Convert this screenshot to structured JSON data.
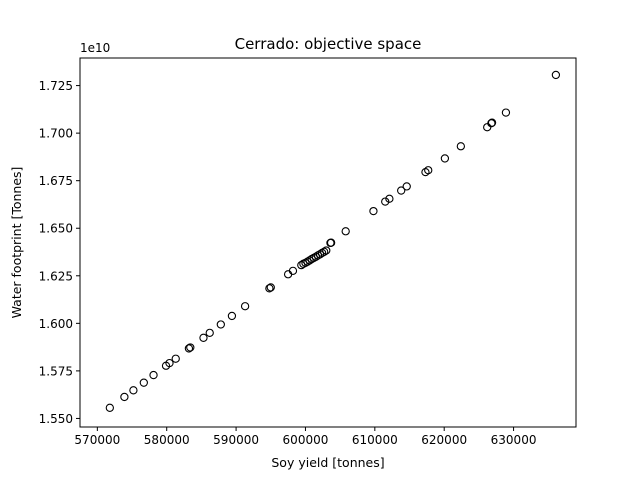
{
  "chart_data": {
    "type": "scatter",
    "title": "Cerrado: objective space",
    "xlabel": "Soy yield [tonnes]",
    "ylabel": "Water footprint [Tonnes]",
    "y_offset_label": "1e10",
    "xlim": [
      567500,
      639000
    ],
    "ylim": [
      1.5455,
      1.7395
    ],
    "xticks": [
      570000,
      580000,
      590000,
      600000,
      610000,
      620000,
      630000
    ],
    "xtick_labels": [
      "570000",
      "580000",
      "590000",
      "600000",
      "610000",
      "620000",
      "630000"
    ],
    "yticks": [
      1.55,
      1.575,
      1.6,
      1.625,
      1.65,
      1.675,
      1.7,
      1.725
    ],
    "ytick_labels": [
      "1.550",
      "1.575",
      "1.600",
      "1.625",
      "1.650",
      "1.675",
      "1.700",
      "1.725"
    ],
    "grid": false,
    "marker": "open-circle",
    "marker_edge_color": "#000000",
    "marker_face_color": "none",
    "points": [
      [
        571800,
        1.5556
      ],
      [
        573900,
        1.5613
      ],
      [
        575200,
        1.5648
      ],
      [
        576700,
        1.5688
      ],
      [
        578100,
        1.5728
      ],
      [
        579900,
        1.5777
      ],
      [
        580400,
        1.5791
      ],
      [
        581300,
        1.5814
      ],
      [
        583200,
        1.5868
      ],
      [
        583400,
        1.5873
      ],
      [
        585300,
        1.5924
      ],
      [
        586200,
        1.595
      ],
      [
        587800,
        1.5994
      ],
      [
        589400,
        1.6039
      ],
      [
        591300,
        1.609
      ],
      [
        594800,
        1.6184
      ],
      [
        595000,
        1.6189
      ],
      [
        597500,
        1.6258
      ],
      [
        598200,
        1.6276
      ],
      [
        599400,
        1.6306
      ],
      [
        599700,
        1.6313
      ],
      [
        600000,
        1.6318
      ],
      [
        600300,
        1.6324
      ],
      [
        600600,
        1.6331
      ],
      [
        600900,
        1.6338
      ],
      [
        601200,
        1.6344
      ],
      [
        601500,
        1.635
      ],
      [
        601800,
        1.6357
      ],
      [
        602100,
        1.6363
      ],
      [
        602400,
        1.637
      ],
      [
        602700,
        1.6376
      ],
      [
        603000,
        1.6383
      ],
      [
        603700,
        1.6424
      ],
      [
        603600,
        1.6423
      ],
      [
        605800,
        1.6484
      ],
      [
        609800,
        1.659
      ],
      [
        611500,
        1.664
      ],
      [
        612100,
        1.6655
      ],
      [
        613800,
        1.6698
      ],
      [
        614600,
        1.672
      ],
      [
        617300,
        1.6795
      ],
      [
        617700,
        1.6805
      ],
      [
        620100,
        1.6867
      ],
      [
        622400,
        1.6931
      ],
      [
        626200,
        1.7031
      ],
      [
        626800,
        1.7052
      ],
      [
        626900,
        1.7055
      ],
      [
        628900,
        1.7108
      ],
      [
        636100,
        1.7306
      ]
    ]
  }
}
